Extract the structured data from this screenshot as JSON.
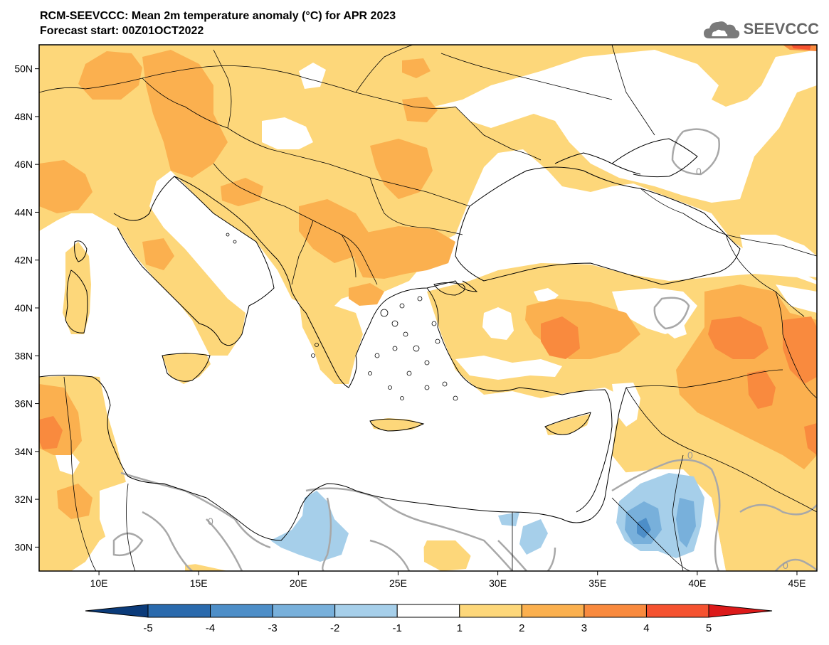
{
  "title": {
    "line1": "RCM-SEEVCCC: Mean 2m temperature anomaly (°C) for APR 2023",
    "line2": "Forecast start: 00Z01OCT2022"
  },
  "logo": {
    "text": "SEEVCCC",
    "icon": "cloud-icon"
  },
  "map": {
    "lon_range": [
      7,
      46
    ],
    "lat_range": [
      29,
      51
    ],
    "lon_ticks": [
      10,
      15,
      20,
      25,
      30,
      35,
      40,
      45
    ],
    "lat_ticks": [
      30,
      32,
      34,
      36,
      38,
      40,
      42,
      44,
      46,
      48,
      50
    ],
    "lon_tick_labels": [
      "10E",
      "15E",
      "20E",
      "25E",
      "30E",
      "35E",
      "40E",
      "45E"
    ],
    "lat_tick_labels": [
      "30N",
      "32N",
      "34N",
      "36N",
      "38N",
      "40N",
      "42N",
      "44N",
      "46N",
      "48N",
      "50N"
    ],
    "zero_contour_label": "0",
    "colors": {
      "sea": "#ffffff",
      "coast": "#000000",
      "zero_contour": "#a8a8a8"
    }
  },
  "colorbar": {
    "labels": [
      "-5",
      "-4",
      "-3",
      "-2",
      "-1",
      "1",
      "2",
      "3",
      "4",
      "5"
    ],
    "colors": [
      "#0b3b7a",
      "#2a6aad",
      "#4d8ec8",
      "#78b0db",
      "#a6cfea",
      "#ffffff",
      "#fdd77a",
      "#fbb04f",
      "#f98a3e",
      "#f55230",
      "#dc1a1a"
    ]
  }
}
